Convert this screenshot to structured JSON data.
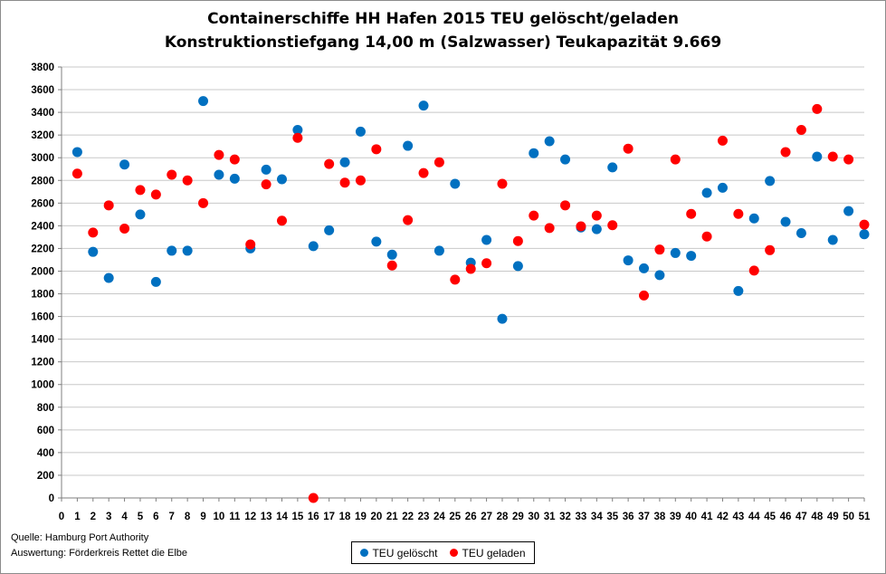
{
  "title_lines": [
    "Containerschiffe HH Hafen 2015 TEU gelöscht/geladen",
    "Konstruktionstiefgang 14,00 m (Salzwasser)  Teukapazität   9.669"
  ],
  "footer": {
    "source": "Quelle: Hamburg Port Authority",
    "analysis": "Auswertung: Förderkreis Rettet die Elbe"
  },
  "colors": {
    "geloescht": "#0070c0",
    "geladen": "#ff0000",
    "grid": "#c8c8c8"
  },
  "chart_data": {
    "type": "scatter",
    "title": "Containerschiffe HH Hafen 2015 TEU gelöscht/geladen — Konstruktionstiefgang 14,00 m (Salzwasser)  Teukapazität   9.669",
    "xlim": [
      0,
      51
    ],
    "ylim": [
      0,
      3800
    ],
    "x_ticks": [
      0,
      1,
      2,
      3,
      4,
      5,
      6,
      7,
      8,
      9,
      10,
      11,
      12,
      13,
      14,
      15,
      16,
      17,
      18,
      19,
      20,
      21,
      22,
      23,
      24,
      25,
      26,
      27,
      28,
      29,
      30,
      31,
      32,
      33,
      34,
      35,
      36,
      37,
      38,
      39,
      40,
      41,
      42,
      43,
      44,
      45,
      46,
      47,
      48,
      49,
      50,
      51
    ],
    "y_ticks": [
      0,
      200,
      400,
      600,
      800,
      1000,
      1200,
      1400,
      1600,
      1800,
      2000,
      2200,
      2400,
      2600,
      2800,
      3000,
      3200,
      3400,
      3600,
      3800
    ],
    "grid": true,
    "legend_position": "bottom-center",
    "series": [
      {
        "name": "TEU gelöscht",
        "color": "#0070c0",
        "x": [
          1,
          2,
          3,
          4,
          5,
          6,
          7,
          8,
          9,
          10,
          11,
          12,
          13,
          14,
          15,
          16,
          17,
          18,
          19,
          20,
          21,
          22,
          23,
          24,
          25,
          26,
          27,
          28,
          29,
          30,
          31,
          32,
          33,
          34,
          35,
          36,
          37,
          38,
          39,
          40,
          41,
          42,
          43,
          44,
          45,
          46,
          47,
          48,
          49,
          50,
          51
        ],
        "y": [
          3050,
          2170,
          1940,
          2940,
          2500,
          1905,
          2180,
          2180,
          3500,
          2850,
          2815,
          2200,
          2895,
          2810,
          3245,
          2220,
          2360,
          2960,
          3230,
          2260,
          2145,
          3105,
          3460,
          2180,
          2770,
          2075,
          2275,
          1580,
          2045,
          3040,
          3145,
          2985,
          2385,
          2370,
          2915,
          2095,
          2025,
          1965,
          2160,
          2135,
          2690,
          2735,
          1825,
          2465,
          2795,
          2435,
          2335,
          3010,
          2275,
          2530,
          2325
        ]
      },
      {
        "name": "TEU geladen",
        "color": "#ff0000",
        "x": [
          1,
          2,
          3,
          4,
          5,
          6,
          7,
          8,
          9,
          10,
          11,
          12,
          13,
          14,
          15,
          16,
          17,
          18,
          19,
          20,
          21,
          22,
          23,
          24,
          25,
          26,
          27,
          28,
          29,
          30,
          31,
          32,
          33,
          34,
          35,
          36,
          37,
          38,
          39,
          40,
          41,
          42,
          43,
          44,
          45,
          46,
          47,
          48,
          49,
          50,
          51
        ],
        "y": [
          2860,
          2340,
          2580,
          2375,
          2715,
          2675,
          2850,
          2800,
          2600,
          3025,
          2985,
          2235,
          2765,
          2445,
          3175,
          0,
          2945,
          2780,
          2800,
          3075,
          2050,
          2450,
          2865,
          2960,
          1925,
          2020,
          2070,
          2770,
          2265,
          2490,
          2380,
          2580,
          2395,
          2490,
          2405,
          3080,
          1785,
          2190,
          2985,
          2505,
          2305,
          3150,
          2505,
          2005,
          2185,
          3050,
          3245,
          3430,
          3010,
          2985,
          2410
        ]
      }
    ]
  }
}
